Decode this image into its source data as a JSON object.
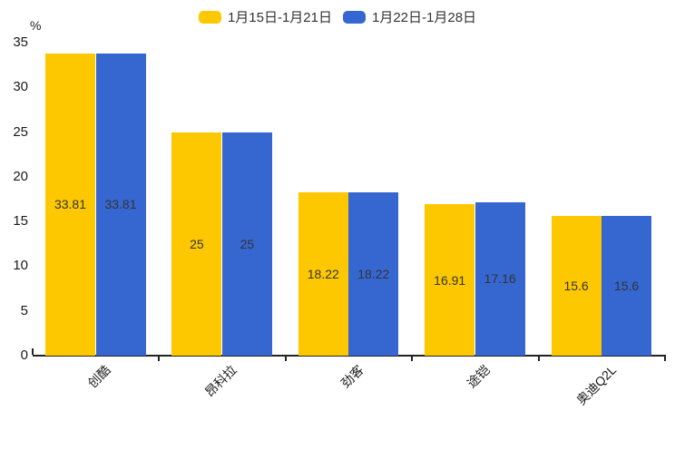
{
  "page": {
    "background": "#ffffff"
  },
  "legend": {
    "items": [
      {
        "label": "1月15日-1月21日",
        "color": "#fec800"
      },
      {
        "label": "1月22日-1月28日",
        "color": "#3667d0"
      }
    ]
  },
  "chart_data": {
    "type": "bar",
    "unit_label": "%",
    "categories": [
      "创酷",
      "昂科拉",
      "劲客",
      "途铠",
      "奥迪Q2L"
    ],
    "series": [
      {
        "name": "1月15日-1月21日",
        "color": "#fec800",
        "values": [
          33.81,
          25,
          18.22,
          16.91,
          15.6
        ]
      },
      {
        "name": "1月22日-1月28日",
        "color": "#3667d0",
        "values": [
          33.81,
          25,
          18.22,
          17.16,
          15.6
        ]
      }
    ],
    "yticks": [
      0,
      5,
      10,
      15,
      20,
      25,
      30,
      35
    ],
    "ylim": [
      0,
      35
    ],
    "grid": false,
    "legend_position": "top",
    "value_labels_shown": true,
    "value_label_position": "inside-center",
    "xlabel_rotation_deg": 45
  },
  "colors": {
    "axis": "#222222",
    "tick_text": "#1a1a1a",
    "value_text": "#333333",
    "legend_text": "#333333"
  }
}
